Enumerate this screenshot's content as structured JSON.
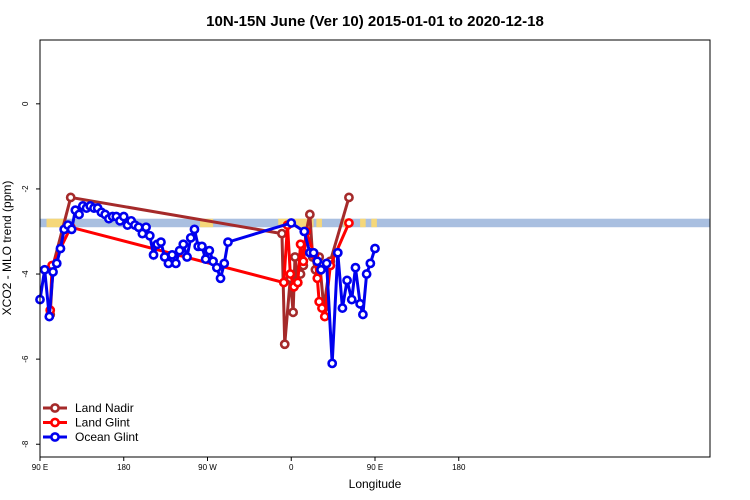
{
  "chart_data": {
    "type": "line",
    "title": "10N-15N June (Ver 10)   2015-01-01 to 2020-12-18",
    "xlabel": "Longitude",
    "ylabel": "XCO2 - MLO trend (ppm)",
    "xlim": [
      90,
      450
    ],
    "ylim": [
      -8.3,
      1.5
    ],
    "x_ticks": [
      {
        "value": 90,
        "label": "90 E"
      },
      {
        "value": 180,
        "label": "180"
      },
      {
        "value": 270,
        "label": "90 W"
      },
      {
        "value": 360,
        "label": "0"
      },
      {
        "value": 450,
        "label": "90 E"
      },
      {
        "value": 540,
        "label": "180"
      }
    ],
    "y_ticks": [
      {
        "value": 0,
        "label": "0"
      },
      {
        "value": -2,
        "label": "-2"
      },
      {
        "value": -4,
        "label": "-4"
      },
      {
        "value": -6,
        "label": "-6"
      },
      {
        "value": -8,
        "label": "-8"
      }
    ],
    "band": {
      "y_low": -2.9,
      "y_high": -2.7,
      "color": "#a9bfe0",
      "land_color": "#f5d77a"
    },
    "legend_position": "bottom-left",
    "series": [
      {
        "name": "Land Nadir",
        "color": "#a52a2a",
        "points": [
          [
            101,
            -4.95
          ],
          [
            104,
            -3.8
          ],
          [
            123,
            -2.2
          ],
          [
            350,
            -3.05
          ],
          [
            353,
            -5.65
          ],
          [
            359,
            -4.1
          ],
          [
            362,
            -4.9
          ],
          [
            364,
            -3.6
          ],
          [
            367,
            -4.2
          ],
          [
            370,
            -4.0
          ],
          [
            373,
            -3.8
          ],
          [
            376,
            -3.0
          ],
          [
            380,
            -2.6
          ],
          [
            383,
            -3.6
          ],
          [
            386,
            -3.9
          ],
          [
            390,
            -3.6
          ],
          [
            395,
            -4.8
          ],
          [
            402,
            -3.7
          ],
          [
            422,
            -2.2
          ]
        ]
      },
      {
        "name": "Land Glint",
        "color": "#ff0000",
        "points": [
          [
            101,
            -4.85
          ],
          [
            103,
            -3.8
          ],
          [
            123,
            -2.9
          ],
          [
            352,
            -4.2
          ],
          [
            356,
            -2.85
          ],
          [
            359,
            -4.0
          ],
          [
            363,
            -4.3
          ],
          [
            367,
            -4.2
          ],
          [
            370,
            -3.3
          ],
          [
            373,
            -3.7
          ],
          [
            376,
            -3.0
          ],
          [
            385,
            -3.55
          ],
          [
            388,
            -4.1
          ],
          [
            390,
            -4.65
          ],
          [
            393,
            -4.8
          ],
          [
            396,
            -5.0
          ],
          [
            402,
            -3.8
          ],
          [
            422,
            -2.8
          ]
        ]
      },
      {
        "name": "Ocean Glint",
        "color": "#0000ee",
        "points": [
          [
            90,
            -4.6
          ],
          [
            95,
            -3.9
          ],
          [
            100,
            -5.0
          ],
          [
            104,
            -3.95
          ],
          [
            108,
            -3.75
          ],
          [
            112,
            -3.4
          ],
          [
            116,
            -2.95
          ],
          [
            120,
            -2.85
          ],
          [
            124,
            -2.95
          ],
          [
            128,
            -2.5
          ],
          [
            132,
            -2.6
          ],
          [
            136,
            -2.4
          ],
          [
            140,
            -2.45
          ],
          [
            144,
            -2.4
          ],
          [
            148,
            -2.45
          ],
          [
            152,
            -2.45
          ],
          [
            156,
            -2.55
          ],
          [
            160,
            -2.6
          ],
          [
            164,
            -2.7
          ],
          [
            168,
            -2.65
          ],
          [
            172,
            -2.65
          ],
          [
            176,
            -2.75
          ],
          [
            180,
            -2.65
          ],
          [
            184,
            -2.85
          ],
          [
            188,
            -2.75
          ],
          [
            192,
            -2.85
          ],
          [
            196,
            -2.9
          ],
          [
            200,
            -3.05
          ],
          [
            204,
            -2.9
          ],
          [
            208,
            -3.1
          ],
          [
            212,
            -3.55
          ],
          [
            216,
            -3.3
          ],
          [
            220,
            -3.25
          ],
          [
            224,
            -3.6
          ],
          [
            228,
            -3.75
          ],
          [
            232,
            -3.55
          ],
          [
            236,
            -3.75
          ],
          [
            240,
            -3.45
          ],
          [
            244,
            -3.3
          ],
          [
            248,
            -3.6
          ],
          [
            252,
            -3.15
          ],
          [
            256,
            -2.95
          ],
          [
            260,
            -3.35
          ],
          [
            264,
            -3.35
          ],
          [
            268,
            -3.65
          ],
          [
            272,
            -3.45
          ],
          [
            276,
            -3.7
          ],
          [
            280,
            -3.85
          ],
          [
            284,
            -4.1
          ],
          [
            288,
            -3.75
          ],
          [
            292,
            -3.25
          ],
          [
            360,
            -2.8
          ],
          [
            374,
            -3.0
          ],
          [
            380,
            -3.5
          ],
          [
            384,
            -3.5
          ],
          [
            388,
            -3.7
          ],
          [
            392,
            -3.9
          ],
          [
            398,
            -3.75
          ],
          [
            404,
            -6.1
          ],
          [
            410,
            -3.5
          ],
          [
            415,
            -4.8
          ],
          [
            420,
            -4.15
          ],
          [
            425,
            -4.6
          ],
          [
            429,
            -3.85
          ],
          [
            434,
            -4.7
          ],
          [
            437,
            -4.95
          ],
          [
            441,
            -4.0
          ],
          [
            445,
            -3.75
          ],
          [
            450,
            -3.4
          ]
        ]
      }
    ]
  }
}
